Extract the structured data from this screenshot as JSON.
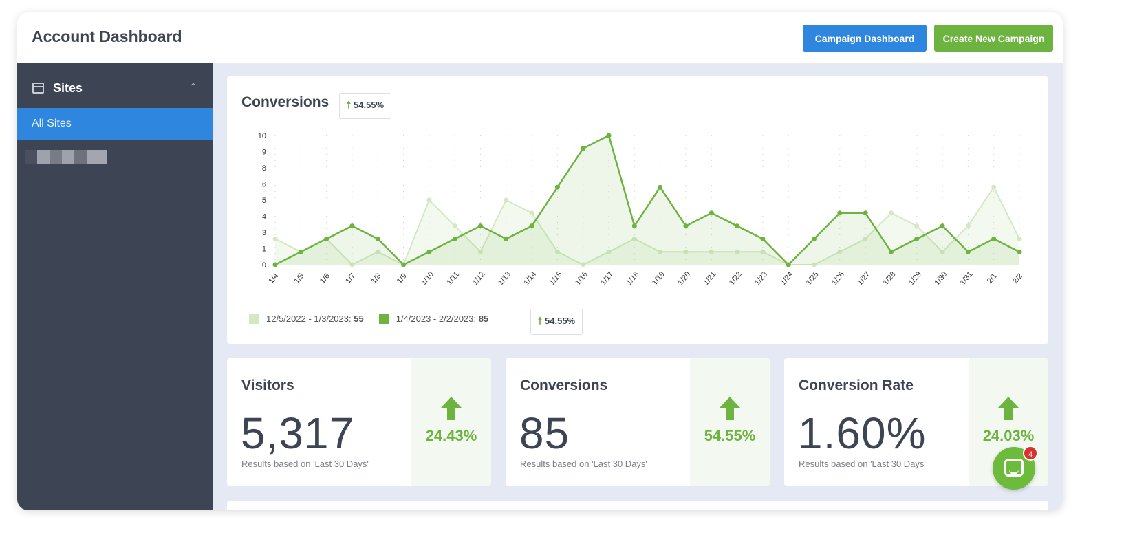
{
  "header": {
    "title": "Account Dashboard",
    "campaign_dashboard": "Campaign Dashboard",
    "create_campaign": "Create New Campaign"
  },
  "sidebar": {
    "section": "Sites",
    "items": [
      {
        "label": "All Sites",
        "active": true
      }
    ]
  },
  "chart_card": {
    "title": "Conversions",
    "change": "54.55%",
    "legend": [
      {
        "label": "12/5/2022 - 1/3/2023:",
        "total": "55"
      },
      {
        "label": "1/4/2023 - 2/2/2023:",
        "total": "85"
      }
    ],
    "legend_change": "54.55%"
  },
  "chart_data": {
    "type": "area",
    "x": [
      "1/4",
      "1/5",
      "1/6",
      "1/7",
      "1/8",
      "1/9",
      "1/10",
      "1/11",
      "1/12",
      "1/13",
      "1/14",
      "1/15",
      "1/16",
      "1/17",
      "1/18",
      "1/19",
      "1/20",
      "1/21",
      "1/22",
      "1/23",
      "1/24",
      "1/25",
      "1/26",
      "1/27",
      "1/28",
      "1/29",
      "1/30",
      "1/31",
      "2/1",
      "2/2"
    ],
    "yticks": [
      "0",
      "1",
      "3",
      "4",
      "5",
      "6",
      "8",
      "9",
      "10"
    ],
    "ylim": [
      0,
      10
    ],
    "grid": "vertical-dotted",
    "legend_placement": "bottom-left",
    "series": [
      {
        "name": "12/5/2022 - 1/3/2023",
        "color": "#d3e8c3",
        "values": [
          2,
          1,
          2,
          0,
          1,
          0,
          5,
          3,
          1,
          5,
          4,
          1,
          0,
          1,
          2,
          1,
          1,
          1,
          1,
          1,
          0,
          0,
          1,
          2,
          4,
          3,
          1,
          3,
          6,
          2
        ]
      },
      {
        "name": "1/4/2023 - 2/2/2023",
        "color": "#6db33f",
        "values": [
          0,
          1,
          2,
          3,
          2,
          0,
          1,
          2,
          3,
          2,
          3,
          6,
          9,
          10,
          3,
          6,
          3,
          4,
          3,
          2,
          0,
          2,
          4,
          4,
          1,
          2,
          3,
          1,
          2,
          1
        ]
      }
    ]
  },
  "stats": [
    {
      "title": "Visitors",
      "value": "5,317",
      "note": "Results based on 'Last 30 Days'",
      "change": "24.43%"
    },
    {
      "title": "Conversions",
      "value": "85",
      "note": "Results based on 'Last 30 Days'",
      "change": "54.55%"
    },
    {
      "title": "Conversion Rate",
      "value": "1.60%",
      "note": "Results based on 'Last 30 Days'",
      "change": "24.03%"
    }
  ],
  "chat": {
    "count": "4"
  },
  "colors": {
    "accent_blue": "#2e86de",
    "accent_green": "#6db33f",
    "sidebar": "#3d4555"
  }
}
